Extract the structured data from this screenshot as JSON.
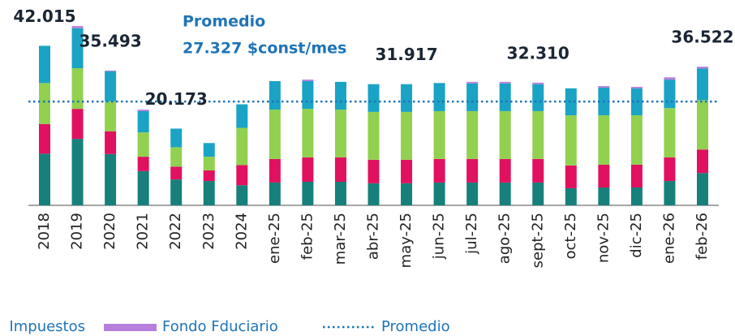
{
  "chart_data": {
    "type": "bar",
    "stacked": true,
    "categories": [
      "2018",
      "2019",
      "2020",
      "2021",
      "2022",
      "2023",
      "2024",
      "ene-25",
      "feb-25",
      "mar-25",
      "abr-25",
      "may-25",
      "jun-25",
      "jul-25",
      "ago-25",
      "sept-25",
      "oct-25",
      "nov-25",
      "dic-25",
      "ene-26",
      "feb-26"
    ],
    "series": [
      {
        "color": "#17807b",
        "values": [
          13.6,
          17.5,
          13.5,
          9.0,
          6.8,
          6.4,
          5.3,
          6.0,
          6.2,
          6.2,
          5.8,
          5.8,
          6.0,
          6.0,
          6.0,
          6.0,
          4.5,
          4.7,
          4.7,
          6.4,
          8.5
        ]
      },
      {
        "color": "#e0115f",
        "values": [
          7.8,
          7.9,
          6.0,
          3.8,
          3.4,
          2.8,
          5.3,
          6.2,
          6.4,
          6.4,
          6.2,
          6.2,
          6.2,
          6.2,
          6.2,
          6.2,
          6.0,
          6.0,
          6.0,
          6.2,
          6.2
        ]
      },
      {
        "color": "#92d050",
        "values": [
          10.8,
          10.7,
          7.9,
          6.4,
          5.1,
          3.6,
          9.8,
          13.0,
          12.8,
          12.6,
          12.6,
          12.6,
          12.6,
          12.6,
          12.6,
          12.6,
          13.2,
          13.0,
          13.0,
          13.0,
          13.0
        ]
      },
      {
        "name": "Impuestos",
        "color": "#1aa3c4",
        "values": [
          9.8,
          10.5,
          7.9,
          5.6,
          4.9,
          3.6,
          6.2,
          7.5,
          7.3,
          7.3,
          7.3,
          7.3,
          7.4,
          7.3,
          7.3,
          7.1,
          7.1,
          7.3,
          7.1,
          7.5,
          8.3
        ]
      },
      {
        "name": "Fondo Fduciario",
        "color": "#b77fdc",
        "values": [
          0,
          0.6,
          0.2,
          0.4,
          0,
          0,
          0,
          0,
          0.4,
          0,
          0,
          0,
          0,
          0.4,
          0.4,
          0.4,
          0,
          0.4,
          0.4,
          0.6,
          0.5
        ]
      }
    ],
    "annotations": [
      {
        "category": "2018",
        "label": "42.015"
      },
      {
        "category": "2020",
        "label": "35.493"
      },
      {
        "category": "2022",
        "label": "20.173"
      },
      {
        "category": "may-25",
        "label": "31.917"
      },
      {
        "category": "sept-25",
        "label": "32.310"
      },
      {
        "category": "feb-26",
        "label": "36.522"
      }
    ],
    "average": 27.327,
    "average_title": "Promedio",
    "average_label": "27.327 $const/mes",
    "average_color": "#1f74b8",
    "ylim": [
      0,
      50
    ]
  }
}
